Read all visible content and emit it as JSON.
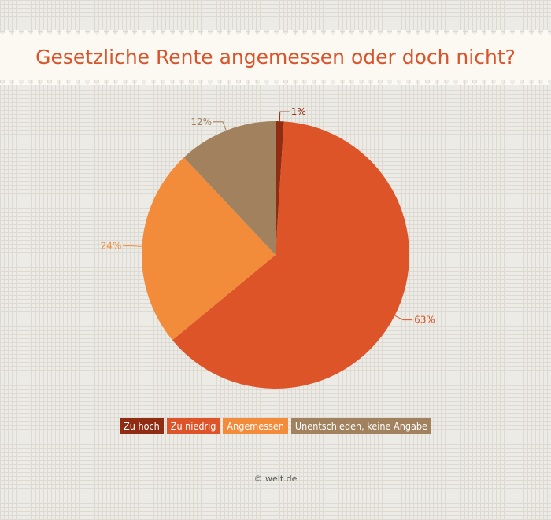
{
  "title": "Gesetzliche Rente angemessen oder doch nicht?",
  "credit": "© welt.de",
  "chart_data": {
    "type": "pie",
    "title": "Gesetzliche Rente angemessen oder doch nicht?",
    "slices": [
      {
        "label": "Zu hoch",
        "value": 1,
        "display": "1%",
        "color": "#8f2c12",
        "label_side": "right"
      },
      {
        "label": "Zu niedrig",
        "value": 63,
        "display": "63%",
        "color": "#dd5429",
        "label_side": "right"
      },
      {
        "label": "Angemessen",
        "value": 24,
        "display": "24%",
        "color": "#f28b3a",
        "label_side": "left"
      },
      {
        "label": "Unentschieden, keine Angabe",
        "value": 12,
        "display": "12%",
        "color": "#a2815f",
        "label_side": "left"
      }
    ],
    "legend_position": "bottom"
  }
}
